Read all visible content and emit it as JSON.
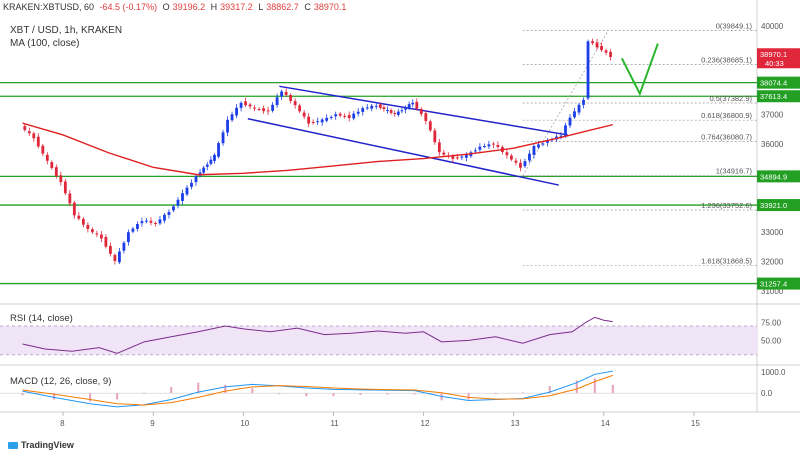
{
  "header": {
    "exchange_pair": "KRAKEN:XBTUSD, 60",
    "change": "-64.5 (-0.17%)",
    "open_label": "O",
    "open": "39196.2",
    "high_label": "H",
    "high": "39317.2",
    "low_label": "L",
    "low": "38862.7",
    "close_label": "C",
    "close": "38970.1"
  },
  "symbol_line": "XBT / USD, 1h, KRAKEN",
  "ma_label": "MA (100, close)",
  "rsi_label": "RSI (14, close)",
  "macd_label": "MACD (12, 26, close, 9)",
  "brand": "TradingView",
  "colors": {
    "up": "#1b3ee8",
    "down": "#e0263a",
    "ma": "#e02020",
    "channel": "#2222cc",
    "hline": "#23a023",
    "fib": "#999999",
    "rsi": "#7a2d8c",
    "rsi_band": "#f0e4f7",
    "macd": "#2196f3",
    "signal": "#f57c00",
    "hist": "#e8a0b8",
    "arrow": "#2bb52b",
    "price_tag": "#e0263a"
  },
  "chart_data": {
    "type": "candlestick",
    "title": "XBT / USD, 1h, KRAKEN",
    "x_ticks": [
      "8",
      "9",
      "10",
      "11",
      "12",
      "13",
      "14",
      "15"
    ],
    "y_ticks": [
      "40000.0",
      "39000.0",
      "38000.0",
      "37000.0",
      "36000.0",
      "35000.0",
      "34000.0",
      "33000.0",
      "32000.0",
      "31000.0"
    ],
    "ylim": [
      30700,
      40200
    ],
    "current_price": "38970.1",
    "current_countdown": "40:33",
    "horizontal_levels": [
      "38074.4",
      "37613.4",
      "34894.9",
      "33921.0",
      "31257.4"
    ],
    "fib_levels": [
      {
        "label": "0(39849.1)",
        "value": 39849.1
      },
      {
        "label": "0.236(38685.1)",
        "value": 38685.1
      },
      {
        "label": "0.5(37382.9)",
        "value": 37382.9
      },
      {
        "label": "0.618(36800.9)",
        "value": 36800.9
      },
      {
        "label": "0.764(36080.7)",
        "value": 36080.7
      },
      {
        "label": "1(34916.7)",
        "value": 34916.7
      },
      {
        "label": "1.236(33752.6)",
        "value": 33752.6
      },
      {
        "label": "1.618(31868.5)",
        "value": 31868.5
      }
    ],
    "candles_close_path": [
      [
        7.55,
        36600
      ],
      [
        7.7,
        36200
      ],
      [
        7.85,
        35400
      ],
      [
        8.0,
        34700
      ],
      [
        8.15,
        33600
      ],
      [
        8.3,
        33100
      ],
      [
        8.45,
        32800
      ],
      [
        8.6,
        32000
      ],
      [
        8.75,
        33000
      ],
      [
        8.9,
        33400
      ],
      [
        9.05,
        33300
      ],
      [
        9.2,
        33700
      ],
      [
        9.35,
        34300
      ],
      [
        9.5,
        34900
      ],
      [
        9.7,
        35600
      ],
      [
        9.85,
        36800
      ],
      [
        10.0,
        37400
      ],
      [
        10.15,
        37200
      ],
      [
        10.3,
        37100
      ],
      [
        10.45,
        37800
      ],
      [
        10.6,
        37300
      ],
      [
        10.75,
        36700
      ],
      [
        10.9,
        36800
      ],
      [
        11.05,
        37000
      ],
      [
        11.2,
        36900
      ],
      [
        11.35,
        37200
      ],
      [
        11.5,
        37300
      ],
      [
        11.7,
        37000
      ],
      [
        11.9,
        37400
      ],
      [
        12.05,
        36800
      ],
      [
        12.2,
        35700
      ],
      [
        12.35,
        35500
      ],
      [
        12.5,
        35600
      ],
      [
        12.65,
        35900
      ],
      [
        12.8,
        36000
      ],
      [
        12.95,
        35600
      ],
      [
        13.1,
        35200
      ],
      [
        13.25,
        35900
      ],
      [
        13.4,
        36100
      ],
      [
        13.55,
        36300
      ],
      [
        13.65,
        36900
      ],
      [
        13.8,
        37500
      ],
      [
        13.85,
        39500
      ],
      [
        13.95,
        39300
      ],
      [
        14.1,
        38970
      ]
    ],
    "ma_path": [
      [
        7.55,
        36700
      ],
      [
        8.0,
        36300
      ],
      [
        8.5,
        35700
      ],
      [
        9.0,
        35200
      ],
      [
        9.5,
        34950
      ],
      [
        10.0,
        35000
      ],
      [
        10.5,
        35100
      ],
      [
        11.0,
        35250
      ],
      [
        11.5,
        35400
      ],
      [
        12.0,
        35500
      ],
      [
        12.5,
        35650
      ],
      [
        13.0,
        35850
      ],
      [
        13.5,
        36200
      ],
      [
        14.1,
        36650
      ]
    ],
    "channel_upper": [
      [
        10.4,
        37950
      ],
      [
        13.6,
        36300
      ]
    ],
    "channel_lower": [
      [
        10.05,
        36850
      ],
      [
        13.5,
        34600
      ]
    ],
    "rsi": {
      "label": "RSI (14, close)",
      "ticks": [
        "75.00",
        "50.00"
      ],
      "band": [
        30,
        70
      ],
      "values": [
        [
          7.55,
          45
        ],
        [
          7.8,
          38
        ],
        [
          8.1,
          35
        ],
        [
          8.4,
          40
        ],
        [
          8.6,
          32
        ],
        [
          8.9,
          48
        ],
        [
          9.2,
          55
        ],
        [
          9.5,
          62
        ],
        [
          9.8,
          70
        ],
        [
          10.0,
          66
        ],
        [
          10.3,
          62
        ],
        [
          10.6,
          67
        ],
        [
          10.9,
          58
        ],
        [
          11.2,
          60
        ],
        [
          11.5,
          63
        ],
        [
          11.8,
          60
        ],
        [
          12.0,
          62
        ],
        [
          12.2,
          48
        ],
        [
          12.5,
          50
        ],
        [
          12.8,
          55
        ],
        [
          13.1,
          46
        ],
        [
          13.4,
          58
        ],
        [
          13.65,
          62
        ],
        [
          13.8,
          75
        ],
        [
          13.9,
          82
        ],
        [
          14.0,
          78
        ],
        [
          14.1,
          76
        ]
      ]
    },
    "macd": {
      "label": "MACD (12, 26, close, 9)",
      "ticks": [
        "1000.0",
        "0.0"
      ],
      "macd_values": [
        [
          7.55,
          100
        ],
        [
          7.9,
          -200
        ],
        [
          8.3,
          -500
        ],
        [
          8.6,
          -650
        ],
        [
          8.9,
          -550
        ],
        [
          9.2,
          -300
        ],
        [
          9.5,
          50
        ],
        [
          9.8,
          300
        ],
        [
          10.1,
          420
        ],
        [
          10.4,
          350
        ],
        [
          10.7,
          250
        ],
        [
          11.0,
          180
        ],
        [
          11.3,
          160
        ],
        [
          11.6,
          140
        ],
        [
          11.9,
          120
        ],
        [
          12.2,
          -150
        ],
        [
          12.5,
          -350
        ],
        [
          12.8,
          -300
        ],
        [
          13.1,
          -250
        ],
        [
          13.4,
          50
        ],
        [
          13.7,
          500
        ],
        [
          13.9,
          900
        ],
        [
          14.1,
          1050
        ]
      ],
      "signal_values": [
        [
          7.55,
          150
        ],
        [
          7.9,
          -50
        ],
        [
          8.3,
          -300
        ],
        [
          8.6,
          -500
        ],
        [
          8.9,
          -560
        ],
        [
          9.2,
          -450
        ],
        [
          9.5,
          -200
        ],
        [
          9.8,
          100
        ],
        [
          10.1,
          300
        ],
        [
          10.4,
          360
        ],
        [
          10.7,
          320
        ],
        [
          11.0,
          250
        ],
        [
          11.3,
          200
        ],
        [
          11.6,
          170
        ],
        [
          11.9,
          150
        ],
        [
          12.2,
          20
        ],
        [
          12.5,
          -200
        ],
        [
          12.8,
          -280
        ],
        [
          13.1,
          -270
        ],
        [
          13.4,
          -120
        ],
        [
          13.7,
          200
        ],
        [
          13.9,
          550
        ],
        [
          14.1,
          850
        ]
      ]
    }
  }
}
